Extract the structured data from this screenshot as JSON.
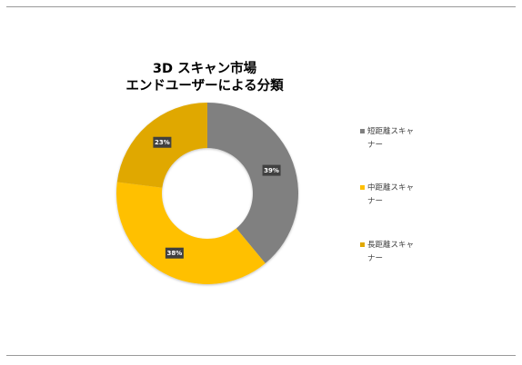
{
  "chart_data": {
    "type": "pie",
    "variant": "doughnut",
    "title": "3D スキャン市場\nエンドユーザーによる分類",
    "title_lines": [
      "3D スキャン市場",
      "エンドユーザーによる分類"
    ],
    "categories": [
      "短距離スキャナー",
      "中距離スキャナー",
      "長距離スキャナー"
    ],
    "values": [
      39,
      38,
      23
    ],
    "labels": [
      "39%",
      "38%",
      "23%"
    ],
    "colors": [
      "#808080",
      "#FFC000",
      "#E0A800"
    ],
    "legend_position": "right"
  }
}
